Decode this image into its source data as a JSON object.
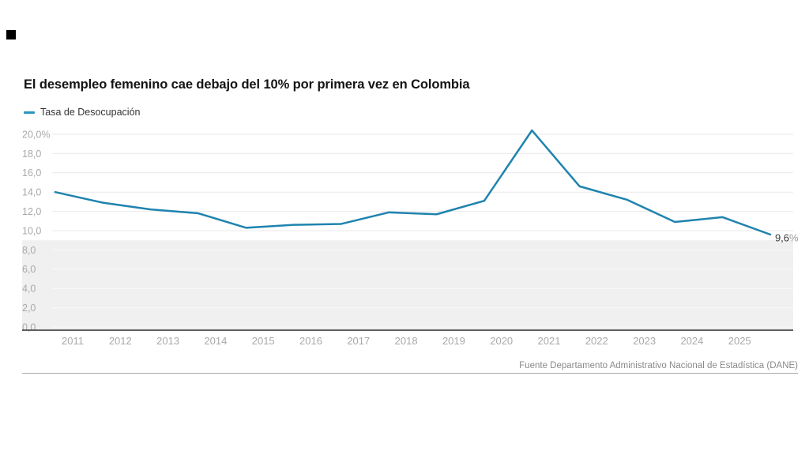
{
  "header": {
    "title": "El desempleo femenino cae debajo del 10% por primera vez en Colombia"
  },
  "legend": {
    "label": "Tasa de Desocupación",
    "color": "#2a96be"
  },
  "decoration": {
    "logo_square_color": "#000000"
  },
  "chart_data": {
    "type": "line",
    "title": "El desempleo femenino cae debajo del 10% por primera vez en Colombia",
    "series": [
      {
        "name": "Tasa de Desocupación",
        "color": "#1f83ae",
        "x": [
          2010,
          2011,
          2012,
          2013,
          2014,
          2015,
          2016,
          2017,
          2018,
          2019,
          2020,
          2021,
          2022,
          2023,
          2024,
          2025
        ],
        "values": [
          14.0,
          12.9,
          12.2,
          11.8,
          10.3,
          10.6,
          10.7,
          11.9,
          11.7,
          13.1,
          20.4,
          14.6,
          13.2,
          10.9,
          11.4,
          9.6
        ]
      }
    ],
    "ylim": [
      0,
      20
    ],
    "yticks": [
      0,
      2,
      4,
      6,
      8,
      10,
      12,
      14,
      16,
      18,
      20
    ],
    "ytick_labels": [
      "0,0",
      "2,0",
      "4,0",
      "6,0",
      "8,0",
      "10,0",
      "12,0",
      "14,0",
      "16,0",
      "18,0",
      "20,0%"
    ],
    "xtick_labels": [
      "2011",
      "2012",
      "2013",
      "2014",
      "2015",
      "2016",
      "2017",
      "2018",
      "2019",
      "2020",
      "2021",
      "2022",
      "2023",
      "2024",
      "2025"
    ],
    "grid": "horizontal",
    "legend_position": "top-left",
    "end_label": {
      "number": "9,6",
      "suffix": "%"
    },
    "end_label_colors": {
      "number": "#3a3a3a",
      "suffix": "#9b9b9b"
    },
    "shaded_region": {
      "ymin": 0,
      "ymax": 9.0,
      "color": "#f0f0f0"
    },
    "axis_color": "#2e2e2e",
    "gridline_color": "#e9e9e9",
    "tick_label_color": "#a9a9a9"
  },
  "footer": {
    "source": "Fuente Departamento Administrativo Nacional de Estadística (DANE)"
  }
}
